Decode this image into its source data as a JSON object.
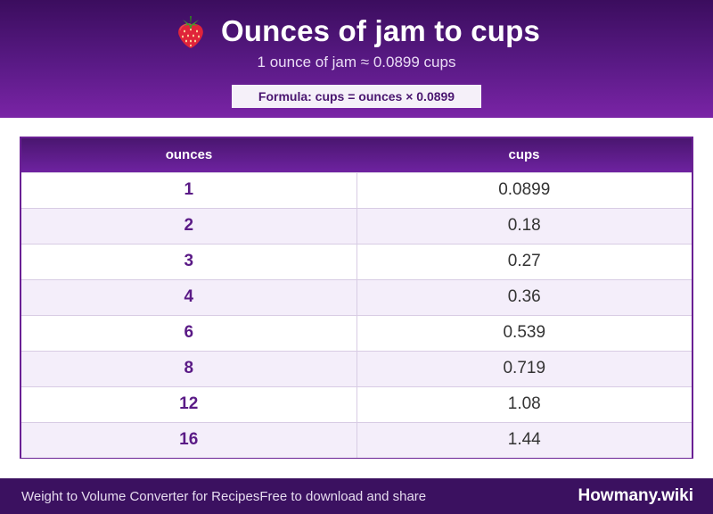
{
  "header": {
    "icon": "strawberry-icon",
    "title": "Ounces of jam to cups",
    "subtitle": "1 ounce of jam ≈ 0.0899 cups",
    "formula": "Formula: cups = ounces × 0.0899"
  },
  "table": {
    "columns": [
      "ounces",
      "cups"
    ],
    "rows": [
      [
        "1",
        "0.0899"
      ],
      [
        "2",
        "0.18"
      ],
      [
        "3",
        "0.27"
      ],
      [
        "4",
        "0.36"
      ],
      [
        "6",
        "0.539"
      ],
      [
        "8",
        "0.719"
      ],
      [
        "12",
        "1.08"
      ],
      [
        "16",
        "1.44"
      ]
    ]
  },
  "footer": {
    "left": "Weight to Volume Converter for Recipes",
    "left2": "Free to download and share",
    "brand": "Howmany.wiki"
  },
  "colors": {
    "header_dark": "#3b0d5e",
    "header_light": "#7a24a6",
    "accent": "#5a1a86",
    "footer": "#3b1160"
  }
}
